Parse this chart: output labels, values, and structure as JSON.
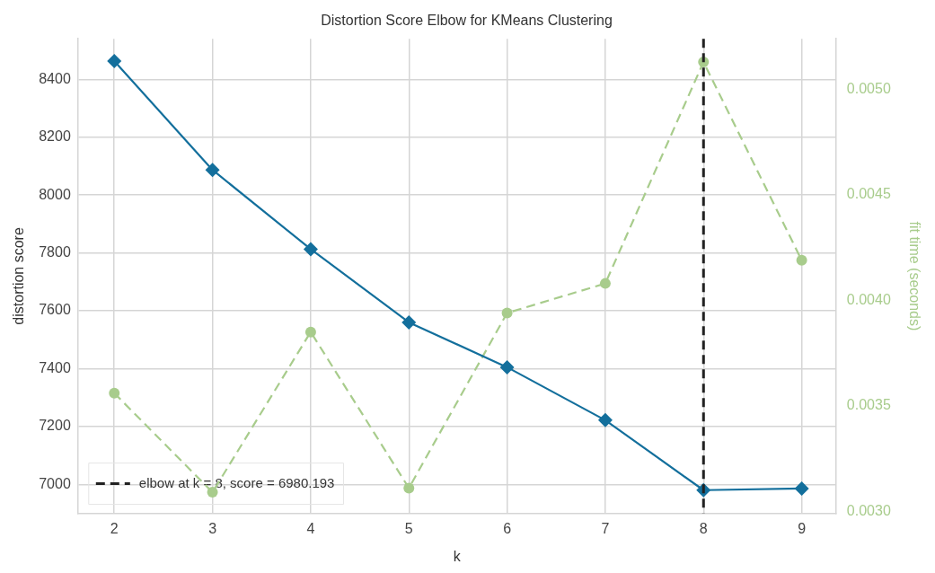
{
  "chart_data": {
    "type": "line",
    "title": "Distortion Score Elbow for KMeans Clustering",
    "xlabel": "k",
    "ylabel": "distortion score",
    "y2label": "fit time (seconds)",
    "x": [
      2,
      3,
      4,
      5,
      6,
      7,
      8,
      9
    ],
    "series": [
      {
        "color": "#136f9c",
        "marker": "diamond",
        "line_style": "solid",
        "values": [
          8463,
          8087,
          7813,
          7560,
          7405,
          7222,
          6980.193,
          6986
        ]
      },
      {
        "color": "#a8cc8c",
        "marker": "circle",
        "line_style": "dashed",
        "axis": "y2",
        "values": [
          0.00356,
          0.00309,
          0.00385,
          0.00311,
          0.00394,
          0.00408,
          0.00513,
          0.00419
        ]
      }
    ],
    "xlim": [
      1.63,
      9.35
    ],
    "xticks": [
      2,
      3,
      4,
      5,
      6,
      7,
      8,
      9
    ],
    "ylim": [
      6900,
      8540
    ],
    "yticks": [
      7000,
      7200,
      7400,
      7600,
      7800,
      8000,
      8200,
      8400
    ],
    "y2lim": [
      0.00299,
      0.00524
    ],
    "y2ticks": [
      {
        "value": 0.003,
        "label": "0.0030"
      },
      {
        "value": 0.0035,
        "label": "0.0035"
      },
      {
        "value": 0.004,
        "label": "0.0040"
      },
      {
        "value": 0.0045,
        "label": "0.0045"
      },
      {
        "value": 0.005,
        "label": "0.0050"
      }
    ],
    "ref_lines": [
      {
        "axis": "x",
        "value": 8,
        "label": "elbow at k = 8, score = 6980.193",
        "color": "#222222",
        "line_style": "dashed"
      }
    ],
    "grid": true,
    "legend": "bottom left"
  }
}
